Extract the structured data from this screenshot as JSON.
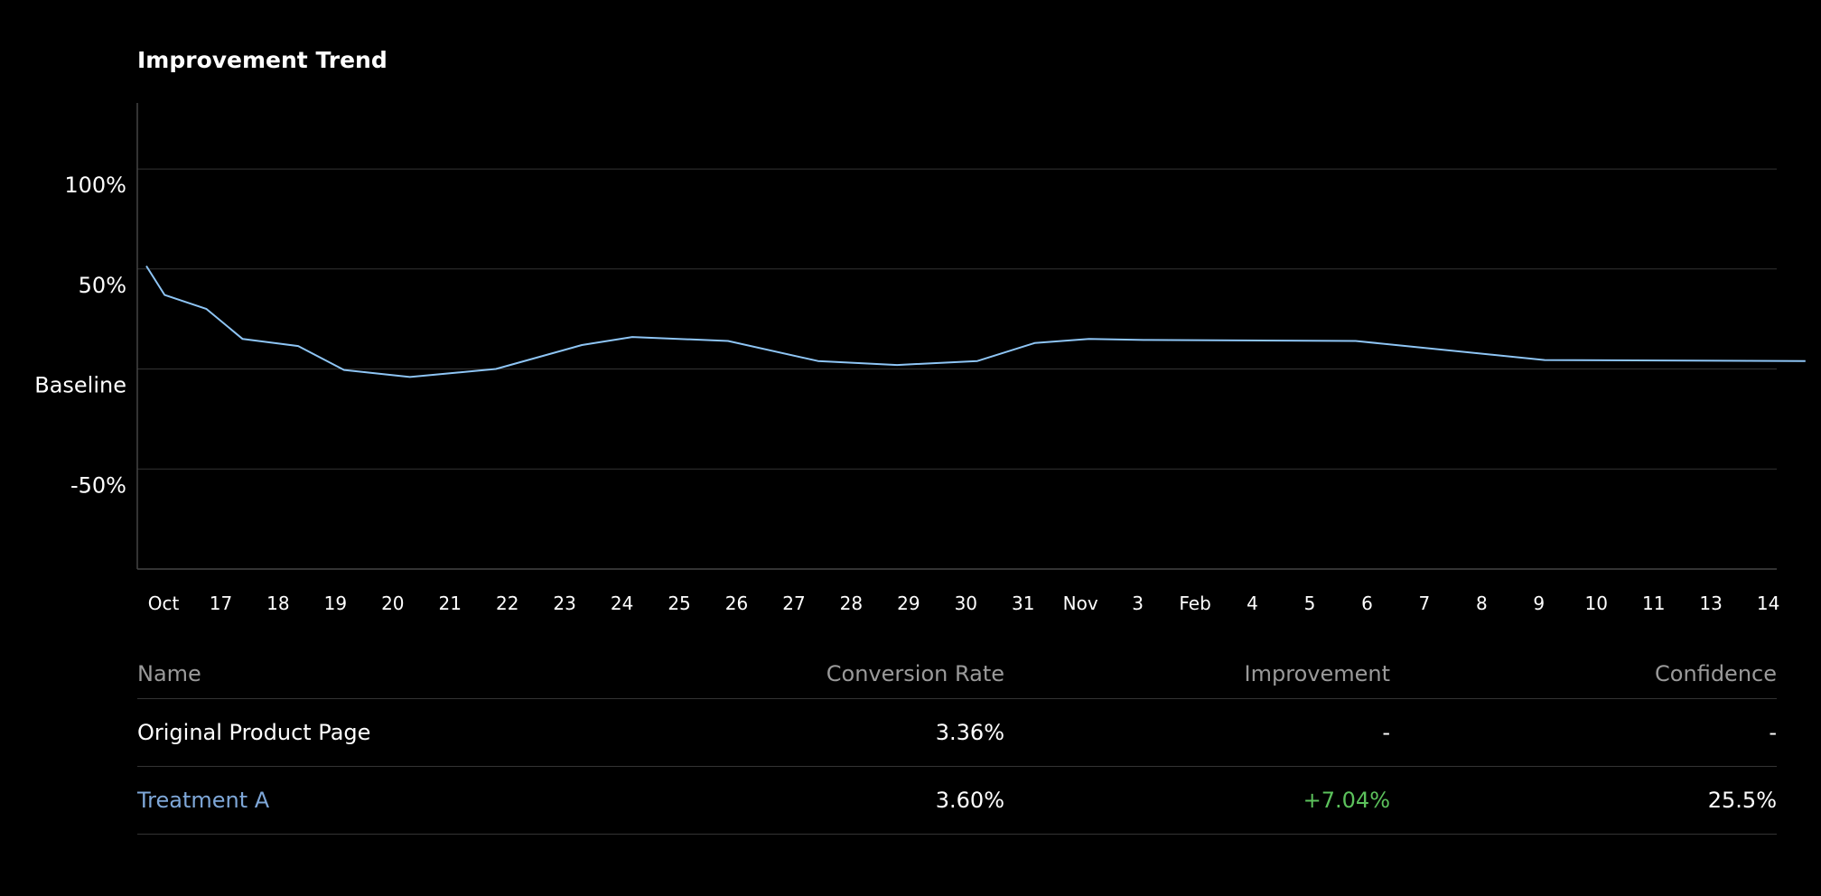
{
  "title": "Improvement Trend",
  "chart_data": {
    "type": "line",
    "title": "Improvement Trend",
    "y_ticks": [
      {
        "value": 100,
        "label": "100%"
      },
      {
        "value": 50,
        "label": "50%"
      },
      {
        "value": 0,
        "label": "Baseline"
      },
      {
        "value": -50,
        "label": "-50%"
      }
    ],
    "ylim": [
      -100,
      133
    ],
    "grid": true,
    "categories": [
      "Oct",
      "17",
      "18",
      "19",
      "20",
      "21",
      "22",
      "23",
      "24",
      "25",
      "26",
      "27",
      "28",
      "29",
      "30",
      "31",
      "Nov",
      "3",
      "Feb",
      "4",
      "5",
      "6",
      "7",
      "8",
      "9",
      "10",
      "11",
      "13",
      "14"
    ],
    "series": [
      {
        "color": "#8ec5f5",
        "x": [
          -0.3,
          0.02,
          0.75,
          1.38,
          2.35,
          3.15,
          4.3,
          5.8,
          7.3,
          8.18,
          9.85,
          11.42,
          12.8,
          14.2,
          15.2,
          16.15,
          17.1,
          20.8,
          24.1,
          28.65
        ],
        "values": [
          51.5,
          37,
          30,
          15,
          11.5,
          -0.5,
          -4,
          0,
          12,
          16,
          14,
          4,
          2,
          4,
          13,
          15,
          14.5,
          14,
          4.5,
          4
        ]
      }
    ]
  },
  "table": {
    "headers": {
      "name": "Name",
      "conversion": "Conversion Rate",
      "improvement": "Improvement",
      "confidence": "Confidence"
    },
    "rows": [
      {
        "name": "Original Product Page",
        "conversion": "3.36%",
        "improvement": "-",
        "confidence": "-"
      },
      {
        "name": "Treatment A",
        "conversion": "3.60%",
        "improvement": "+7.04%",
        "confidence": "25.5%"
      }
    ]
  },
  "colors": {
    "background": "#000000",
    "line": "#8ec5f5",
    "grid": "#333333",
    "treatment_name": "#7ea7d8",
    "positive": "#5cc25c",
    "header_text": "#9a9a9a"
  }
}
